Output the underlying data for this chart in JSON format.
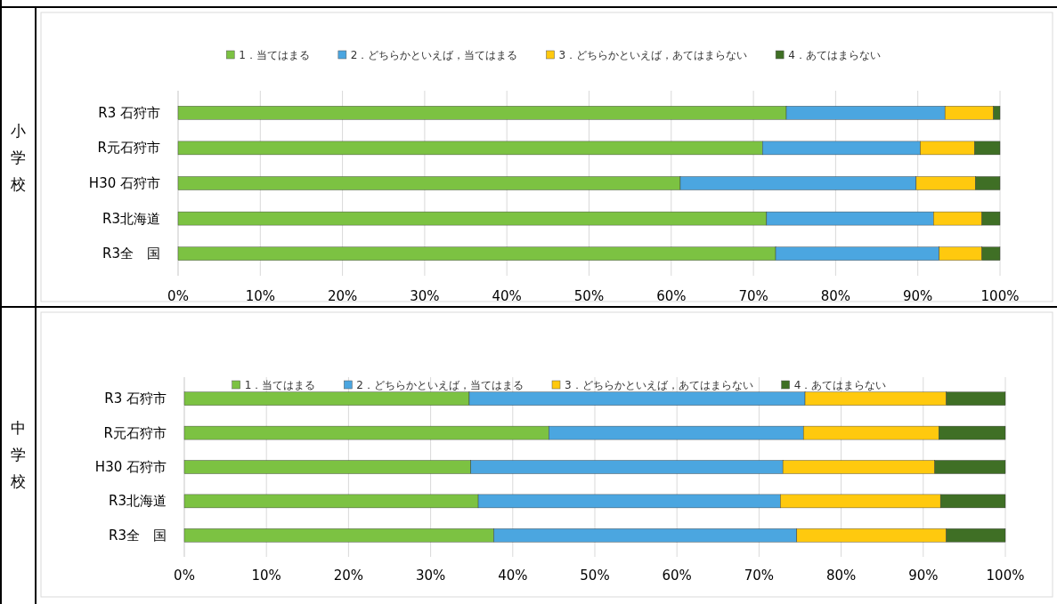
{
  "chart_data": [
    {
      "type": "bar",
      "orientation": "horizontal",
      "stacked": true,
      "ylabel": "小学校",
      "legend": "top",
      "grid": "x",
      "categories": [
        "R3 石狩市",
        "R元石狩市",
        "H30 石狩市",
        "R3北海道",
        "R3全　国"
      ],
      "xlim": [
        0,
        100
      ],
      "xticks": [
        {
          "value": 0,
          "label": "0%"
        },
        {
          "value": 10,
          "label": "10%"
        },
        {
          "value": 20,
          "label": "20%"
        },
        {
          "value": 30,
          "label": "30%"
        },
        {
          "value": 40,
          "label": "40%"
        },
        {
          "value": 50,
          "label": "50%"
        },
        {
          "value": 60,
          "label": "60%"
        },
        {
          "value": 70,
          "label": "70%"
        },
        {
          "value": 80,
          "label": "80%"
        },
        {
          "value": 90,
          "label": "90%"
        },
        {
          "value": 100,
          "label": "100%"
        }
      ],
      "series": [
        {
          "name": "1．当てはまる",
          "color": "#7cc242",
          "values": [
            74,
            71.1,
            61.1,
            71.6,
            72.7
          ]
        },
        {
          "name": "2．どちらかといえば，当てはまる",
          "color": "#4ba6e0",
          "values": [
            19.3,
            19.2,
            28.7,
            20.3,
            19.9
          ]
        },
        {
          "name": "3．どちらかといえば，あてはまらない",
          "color": "#ffc90e",
          "values": [
            5.9,
            6.6,
            7.2,
            5.9,
            5.2
          ]
        },
        {
          "name": "4．あてはまらない",
          "color": "#3f6f25",
          "values": [
            0.8,
            3.1,
            3.0,
            2.2,
            2.2
          ]
        }
      ]
    },
    {
      "type": "bar",
      "orientation": "horizontal",
      "stacked": true,
      "ylabel": "中学校",
      "legend": "top",
      "grid": "x",
      "categories": [
        "R3 石狩市",
        "R元石狩市",
        "H30 石狩市",
        "R3北海道",
        "R3全　国"
      ],
      "xlim": [
        0,
        100
      ],
      "xticks": [
        {
          "value": 0,
          "label": "0%"
        },
        {
          "value": 10,
          "label": "10%"
        },
        {
          "value": 20,
          "label": "20%"
        },
        {
          "value": 30,
          "label": "30%"
        },
        {
          "value": 40,
          "label": "40%"
        },
        {
          "value": 50,
          "label": "50%"
        },
        {
          "value": 60,
          "label": "60%"
        },
        {
          "value": 70,
          "label": "70%"
        },
        {
          "value": 80,
          "label": "80%"
        },
        {
          "value": 90,
          "label": "90%"
        },
        {
          "value": 100,
          "label": "100%"
        }
      ],
      "series": [
        {
          "name": "1．当てはまる",
          "color": "#7cc242",
          "values": [
            34.7,
            44.4,
            34.9,
            35.8,
            37.7
          ]
        },
        {
          "name": "2．どちらかといえば，当てはまる",
          "color": "#4ba6e0",
          "values": [
            40.9,
            31.0,
            38.0,
            36.8,
            36.9
          ]
        },
        {
          "name": "3．どちらかといえば，あてはまらない",
          "color": "#ffc90e",
          "values": [
            17.2,
            16.5,
            18.5,
            19.5,
            18.2
          ]
        },
        {
          "name": "4．あてはまらない",
          "color": "#3f6f25",
          "values": [
            7.2,
            8.1,
            8.6,
            7.9,
            7.2
          ]
        }
      ]
    }
  ]
}
